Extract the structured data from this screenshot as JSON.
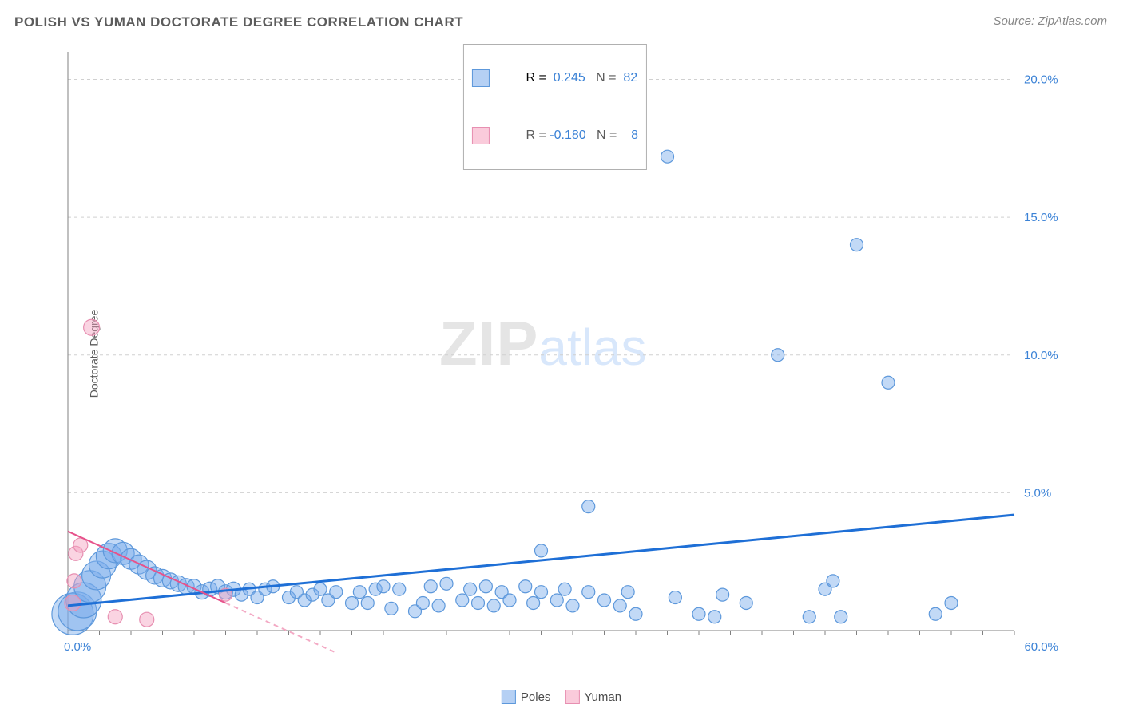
{
  "title": "POLISH VS YUMAN DOCTORATE DEGREE CORRELATION CHART",
  "source": "Source: ZipAtlas.com",
  "y_axis_label": "Doctorate Degree",
  "watermark": {
    "zip": "ZIP",
    "atlas": "atlas"
  },
  "chart": {
    "type": "scatter",
    "xlim": [
      0,
      60
    ],
    "ylim": [
      0,
      21
    ],
    "x_ticks_minor_step": 2,
    "y_gridlines": [
      5,
      10,
      15,
      20
    ],
    "y_grid_color": "#d0d0d0",
    "axis_color": "#808080",
    "background_color": "#ffffff",
    "x_start_label": "0.0%",
    "x_end_label": "60.0%",
    "y_labels": [
      {
        "v": 5,
        "t": "5.0%"
      },
      {
        "v": 10,
        "t": "10.0%"
      },
      {
        "v": 15,
        "t": "15.0%"
      },
      {
        "v": 20,
        "t": "20.0%"
      }
    ],
    "y_label_color": "#3b82d6"
  },
  "series": {
    "poles": {
      "label": "Poles",
      "fill_color": "rgba(120,170,235,0.45)",
      "stroke_color": "#5d98db",
      "trend": {
        "x1": 0,
        "y1": 0.9,
        "x2": 60,
        "y2": 4.2,
        "stroke": "#1e6fd6",
        "width": 3,
        "dash": "none"
      },
      "r_value": "0.245",
      "n_value": "82",
      "points": [
        {
          "x": 0.3,
          "y": 0.6,
          "r": 26
        },
        {
          "x": 0.6,
          "y": 0.7,
          "r": 24
        },
        {
          "x": 1.0,
          "y": 1.1,
          "r": 22
        },
        {
          "x": 1.4,
          "y": 1.6,
          "r": 20
        },
        {
          "x": 1.8,
          "y": 2.0,
          "r": 18
        },
        {
          "x": 2.2,
          "y": 2.4,
          "r": 17
        },
        {
          "x": 2.6,
          "y": 2.7,
          "r": 16
        },
        {
          "x": 3.0,
          "y": 2.9,
          "r": 15
        },
        {
          "x": 3.5,
          "y": 2.8,
          "r": 14
        },
        {
          "x": 4.0,
          "y": 2.6,
          "r": 13
        },
        {
          "x": 4.5,
          "y": 2.4,
          "r": 12
        },
        {
          "x": 5.0,
          "y": 2.2,
          "r": 12
        },
        {
          "x": 5.5,
          "y": 2.0,
          "r": 11
        },
        {
          "x": 6.0,
          "y": 1.9,
          "r": 11
        },
        {
          "x": 6.5,
          "y": 1.8,
          "r": 10
        },
        {
          "x": 7.0,
          "y": 1.7,
          "r": 10
        },
        {
          "x": 7.5,
          "y": 1.6,
          "r": 10
        },
        {
          "x": 8.0,
          "y": 1.6,
          "r": 9
        },
        {
          "x": 8.5,
          "y": 1.4,
          "r": 9
        },
        {
          "x": 9.0,
          "y": 1.5,
          "r": 9
        },
        {
          "x": 9.5,
          "y": 1.6,
          "r": 9
        },
        {
          "x": 10,
          "y": 1.4,
          "r": 9
        },
        {
          "x": 10.5,
          "y": 1.5,
          "r": 9
        },
        {
          "x": 11,
          "y": 1.3,
          "r": 8
        },
        {
          "x": 11.5,
          "y": 1.5,
          "r": 8
        },
        {
          "x": 12,
          "y": 1.2,
          "r": 8
        },
        {
          "x": 12.5,
          "y": 1.5,
          "r": 8
        },
        {
          "x": 13,
          "y": 1.6,
          "r": 8
        },
        {
          "x": 14,
          "y": 1.2,
          "r": 8
        },
        {
          "x": 14.5,
          "y": 1.4,
          "r": 8
        },
        {
          "x": 15,
          "y": 1.1,
          "r": 8
        },
        {
          "x": 15.5,
          "y": 1.3,
          "r": 8
        },
        {
          "x": 16,
          "y": 1.5,
          "r": 8
        },
        {
          "x": 16.5,
          "y": 1.1,
          "r": 8
        },
        {
          "x": 17,
          "y": 1.4,
          "r": 8
        },
        {
          "x": 18,
          "y": 1.0,
          "r": 8
        },
        {
          "x": 18.5,
          "y": 1.4,
          "r": 8
        },
        {
          "x": 19,
          "y": 1.0,
          "r": 8
        },
        {
          "x": 19.5,
          "y": 1.5,
          "r": 8
        },
        {
          "x": 20,
          "y": 1.6,
          "r": 8
        },
        {
          "x": 20.5,
          "y": 0.8,
          "r": 8
        },
        {
          "x": 21,
          "y": 1.5,
          "r": 8
        },
        {
          "x": 22,
          "y": 0.7,
          "r": 8
        },
        {
          "x": 22.5,
          "y": 1.0,
          "r": 8
        },
        {
          "x": 23,
          "y": 1.6,
          "r": 8
        },
        {
          "x": 23.5,
          "y": 0.9,
          "r": 8
        },
        {
          "x": 24,
          "y": 1.7,
          "r": 8
        },
        {
          "x": 25,
          "y": 1.1,
          "r": 8
        },
        {
          "x": 25.5,
          "y": 1.5,
          "r": 8
        },
        {
          "x": 26,
          "y": 1.0,
          "r": 8
        },
        {
          "x": 26.5,
          "y": 1.6,
          "r": 8
        },
        {
          "x": 27,
          "y": 0.9,
          "r": 8
        },
        {
          "x": 27.5,
          "y": 1.4,
          "r": 8
        },
        {
          "x": 28,
          "y": 1.1,
          "r": 8
        },
        {
          "x": 29,
          "y": 1.6,
          "r": 8
        },
        {
          "x": 29.5,
          "y": 1.0,
          "r": 8
        },
        {
          "x": 30,
          "y": 1.4,
          "r": 8
        },
        {
          "x": 30,
          "y": 2.9,
          "r": 8
        },
        {
          "x": 31,
          "y": 1.1,
          "r": 8
        },
        {
          "x": 31.5,
          "y": 1.5,
          "r": 8
        },
        {
          "x": 32,
          "y": 0.9,
          "r": 8
        },
        {
          "x": 33,
          "y": 1.4,
          "r": 8
        },
        {
          "x": 33,
          "y": 4.5,
          "r": 8
        },
        {
          "x": 34,
          "y": 1.1,
          "r": 8
        },
        {
          "x": 35,
          "y": 0.9,
          "r": 8
        },
        {
          "x": 35.5,
          "y": 1.4,
          "r": 8
        },
        {
          "x": 36,
          "y": 0.6,
          "r": 8
        },
        {
          "x": 38,
          "y": 17.2,
          "r": 8
        },
        {
          "x": 38.5,
          "y": 1.2,
          "r": 8
        },
        {
          "x": 40,
          "y": 0.6,
          "r": 8
        },
        {
          "x": 41,
          "y": 0.5,
          "r": 8
        },
        {
          "x": 41.5,
          "y": 1.3,
          "r": 8
        },
        {
          "x": 43,
          "y": 1.0,
          "r": 8
        },
        {
          "x": 45,
          "y": 10.0,
          "r": 8
        },
        {
          "x": 47,
          "y": 0.5,
          "r": 8
        },
        {
          "x": 48,
          "y": 1.5,
          "r": 8
        },
        {
          "x": 48.5,
          "y": 1.8,
          "r": 8
        },
        {
          "x": 49,
          "y": 0.5,
          "r": 8
        },
        {
          "x": 50,
          "y": 14.0,
          "r": 8
        },
        {
          "x": 52,
          "y": 9.0,
          "r": 8
        },
        {
          "x": 55,
          "y": 0.6,
          "r": 8
        },
        {
          "x": 56,
          "y": 1.0,
          "r": 8
        }
      ]
    },
    "yuman": {
      "label": "Yuman",
      "fill_color": "rgba(245,160,190,0.45)",
      "stroke_color": "#e78fb1",
      "trend_solid": {
        "x1": 0,
        "y1": 3.6,
        "x2": 10,
        "y2": 1.0,
        "stroke": "#e7528b",
        "width": 2
      },
      "trend_dash": {
        "x1": 10,
        "y1": 1.0,
        "x2": 17,
        "y2": -0.8,
        "stroke": "#f3a9c4",
        "width": 2,
        "dash": "6,5"
      },
      "r_value": "-0.180",
      "n_value": "8",
      "points": [
        {
          "x": 0.3,
          "y": 1.0,
          "r": 10
        },
        {
          "x": 0.4,
          "y": 1.8,
          "r": 9
        },
        {
          "x": 0.5,
          "y": 2.8,
          "r": 9
        },
        {
          "x": 0.8,
          "y": 3.1,
          "r": 9
        },
        {
          "x": 1.5,
          "y": 11.0,
          "r": 10
        },
        {
          "x": 3.0,
          "y": 0.5,
          "r": 9
        },
        {
          "x": 5.0,
          "y": 0.4,
          "r": 9
        },
        {
          "x": 10.0,
          "y": 1.3,
          "r": 8
        }
      ]
    }
  },
  "legend_box": {
    "r_label": "R =",
    "n_label": "N ="
  },
  "bottom_legend": {
    "poles": "Poles",
    "yuman": "Yuman"
  },
  "colors": {
    "title_text": "#5c5c5c",
    "value_blue": "#3b82d6",
    "value_label": "#5a5a5a",
    "swatch_blue_fill": "rgba(120,170,235,0.55)",
    "swatch_blue_border": "#5d98db",
    "swatch_pink_fill": "rgba(245,160,190,0.55)",
    "swatch_pink_border": "#e78fb1"
  }
}
